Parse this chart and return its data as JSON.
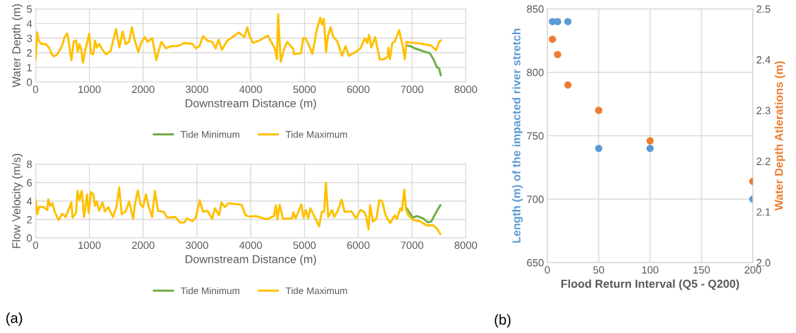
{
  "chart_data": [
    {
      "type": "line",
      "xlabel": "Downstream Distance (m)",
      "ylabel": "Water Depth (m)",
      "xlim": [
        0,
        8000
      ],
      "xticks": [
        0,
        1000,
        2000,
        3000,
        4000,
        5000,
        6000,
        7000,
        8000
      ],
      "ylim": [
        0,
        5
      ],
      "yticks": [
        0,
        1,
        2,
        3,
        4,
        5
      ],
      "grid": true,
      "legend": "bottom",
      "marker": "none",
      "line_style": "solid",
      "series": [
        {
          "name": "Tide Minimum",
          "color": "#70ad47",
          "x": [
            6896,
            6972,
            7057,
            7227,
            7333,
            7397,
            7461,
            7503,
            7533
          ],
          "values": [
            2.5,
            2.45,
            2.3,
            2.08,
            1.97,
            1.57,
            1.02,
            0.94,
            0.47
          ]
        },
        {
          "name": "Tide Maximum",
          "color": "#ffc000",
          "x": [
            0,
            30,
            56,
            107,
            172,
            215,
            258,
            300,
            343,
            408,
            494,
            536,
            588,
            622,
            665,
            708,
            751,
            785,
            815,
            845,
            880,
            931,
            996,
            1030,
            1073,
            1103,
            1137,
            1180,
            1245,
            1309,
            1395,
            1494,
            1558,
            1618,
            1674,
            1738,
            1790,
            1833,
            1910,
            1961,
            2030,
            2082,
            2167,
            2245,
            2288,
            2339,
            2425,
            2511,
            2640,
            2768,
            2918,
            2983,
            3047,
            3112,
            3197,
            3283,
            3348,
            3403,
            3464,
            3562,
            3777,
            3884,
            3936,
            3979,
            4042,
            4170,
            4318,
            4403,
            4446,
            4488,
            4510,
            4531,
            4560,
            4616,
            4679,
            4743,
            4786,
            4807,
            4934,
            4977,
            5019,
            5083,
            5146,
            5231,
            5295,
            5325,
            5359,
            5401,
            5435,
            5486,
            5529,
            5614,
            5699,
            5762,
            5826,
            5953,
            6038,
            6123,
            6166,
            6200,
            6242,
            6314,
            6399,
            6484,
            6548,
            6560,
            6590,
            6633,
            6675,
            6760,
            6824,
            6866,
            6896,
            6972,
            7142,
            7354,
            7448,
            7503,
            7533
          ],
          "values": [
            1.57,
            3.4,
            2.83,
            2.6,
            2.6,
            2.5,
            2.3,
            1.9,
            1.75,
            1.9,
            2.5,
            3.05,
            3.33,
            2.6,
            1.5,
            2.75,
            2.85,
            2.05,
            2.6,
            2.3,
            1.33,
            2.3,
            3.3,
            1.97,
            1.9,
            2.83,
            2.36,
            2.6,
            2.2,
            1.9,
            2.12,
            3.62,
            2.36,
            3.46,
            2.6,
            2.75,
            3.74,
            3.0,
            2.05,
            2.67,
            3.07,
            2.75,
            3.0,
            1.5,
            2.12,
            2.75,
            2.3,
            2.45,
            2.45,
            2.67,
            2.6,
            2.3,
            2.45,
            3.14,
            2.83,
            2.75,
            2.3,
            2.9,
            2.2,
            2.83,
            3.38,
            3.07,
            3.74,
            3.14,
            2.67,
            2.86,
            3.18,
            2.6,
            2.3,
            1.57,
            4.64,
            3.14,
            1.38,
            2.2,
            2.75,
            2.45,
            2.3,
            1.9,
            1.97,
            3.0,
            3.0,
            2.5,
            1.92,
            3.62,
            4.4,
            3.93,
            4.32,
            2.05,
            3.14,
            3.74,
            3.14,
            2.75,
            1.8,
            2.45,
            1.8,
            2.05,
            2.3,
            3.0,
            2.67,
            3.22,
            2.36,
            3.07,
            1.54,
            1.57,
            1.73,
            2.33,
            1.57,
            2.67,
            2.75,
            3.54,
            2.5,
            1.57,
            2.75,
            2.7,
            2.64,
            2.5,
            2.17,
            2.75,
            2.83
          ]
        }
      ]
    },
    {
      "type": "line",
      "xlabel": "Downstream Distance (m)",
      "ylabel": "Flow Velocity (m/s)",
      "xlim": [
        0,
        8000
      ],
      "xticks": [
        0,
        1000,
        2000,
        3000,
        4000,
        5000,
        6000,
        7000,
        8000
      ],
      "ylim": [
        0,
        8
      ],
      "yticks": [
        0,
        2,
        4,
        6,
        8
      ],
      "grid": true,
      "legend": "bottom",
      "marker": "none",
      "line_style": "solid",
      "annotations": [
        "(a)"
      ],
      "series": [
        {
          "name": "Tide Minimum",
          "color": "#70ad47",
          "x": [
            6890,
            7017,
            7093,
            7208,
            7292,
            7356,
            7441,
            7525
          ],
          "values": [
            3.28,
            2.2,
            2.37,
            2.12,
            1.69,
            1.77,
            2.7,
            3.54
          ]
        },
        {
          "name": "Tide Maximum",
          "color": "#ffc000",
          "x": [
            0,
            30,
            64,
            150,
            215,
            236,
            270,
            313,
            356,
            429,
            494,
            558,
            622,
            665,
            687,
            751,
            777,
            815,
            858,
            901,
            957,
            987,
            1030,
            1073,
            1103,
            1137,
            1180,
            1245,
            1288,
            1352,
            1438,
            1502,
            1554,
            1601,
            1674,
            1738,
            1815,
            1845,
            1901,
            1953,
            1996,
            2052,
            2103,
            2167,
            2219,
            2275,
            2382,
            2446,
            2597,
            2682,
            2768,
            2811,
            2918,
            2983,
            3052,
            3112,
            3197,
            3283,
            3335,
            3412,
            3455,
            3519,
            3584,
            3830,
            3906,
            3970,
            4093,
            4305,
            4432,
            4466,
            4496,
            4538,
            4602,
            4771,
            4792,
            4835,
            4941,
            4983,
            5025,
            5068,
            5110,
            5174,
            5271,
            5322,
            5364,
            5398,
            5441,
            5513,
            5555,
            5619,
            5691,
            5746,
            5873,
            5958,
            6042,
            6106,
            6148,
            6191,
            6220,
            6275,
            6339,
            6390,
            6445,
            6508,
            6593,
            6678,
            6720,
            6784,
            6814,
            6856,
            6890,
            6932,
            7017,
            7144,
            7271,
            7398,
            7475,
            7525
          ],
          "values": [
            4.09,
            2.58,
            3.38,
            3.33,
            3.03,
            4.17,
            3.46,
            3.76,
            2.83,
            1.94,
            2.63,
            2.27,
            3.21,
            3.84,
            2.2,
            2.7,
            5.1,
            4.09,
            5.1,
            2.27,
            4.72,
            2.7,
            4.97,
            4.72,
            3.46,
            3.96,
            2.95,
            3.84,
            2.88,
            3.33,
            2.27,
            3.33,
            5.48,
            2.58,
            2.88,
            3.96,
            2.07,
            3.59,
            5.15,
            3.59,
            3.33,
            4.72,
            3.38,
            2.27,
            5.1,
            2.95,
            2.83,
            2.2,
            2.27,
            1.69,
            1.69,
            2.12,
            1.82,
            2.27,
            4.09,
            2.83,
            2.95,
            2.07,
            3.21,
            2.45,
            3.84,
            3.33,
            3.76,
            3.59,
            2.45,
            2.32,
            2.37,
            2.02,
            2.37,
            3.54,
            2.02,
            3.59,
            2.07,
            2.12,
            2.78,
            2.12,
            3.64,
            2.2,
            3.03,
            2.12,
            3.21,
            2.45,
            1.26,
            2.83,
            2.83,
            5.98,
            2.27,
            3.03,
            2.27,
            2.95,
            4.14,
            2.83,
            2.88,
            2.12,
            3.03,
            2.83,
            2.32,
            0.93,
            3.54,
            1.77,
            2.12,
            4.09,
            3.96,
            2.45,
            1.62,
            2.45,
            2.07,
            3.21,
            2.95,
            5.23,
            3.03,
            2.45,
            1.94,
            1.82,
            1.36,
            1.36,
            0.93,
            0.43
          ]
        }
      ]
    },
    {
      "type": "scatter",
      "xlabel": "Flood Return Interval (Q5 - Q200)",
      "ylabel": "Length (m) of the impacted river stretch",
      "y2label": "Water Depth Atlerations (m)",
      "xlim": [
        0,
        200
      ],
      "xticks": [
        0,
        50,
        100,
        150,
        200
      ],
      "ylim": [
        650,
        850
      ],
      "yticks": [
        650,
        700,
        750,
        800,
        850
      ],
      "y2lim": [
        2.0,
        2.5
      ],
      "y2ticks": [
        {
          "value": 2.0,
          "label": "2.0"
        },
        {
          "value": 2.1,
          "label": "2.1"
        },
        {
          "value": 2.2,
          "label": "2.2"
        },
        {
          "value": 2.3,
          "label": "2.3"
        },
        {
          "value": 2.4,
          "label": "2.4"
        },
        {
          "value": 2.5,
          "label": "2.5"
        }
      ],
      "grid": true,
      "marker": "circle",
      "annotations": [
        "(b)"
      ],
      "series": [
        {
          "color": "#5b9bd5",
          "x": [
            5,
            10,
            20,
            50,
            100,
            200
          ],
          "values": [
            840,
            840,
            840,
            740,
            740,
            700
          ]
        },
        {
          "color": "#ed7d31",
          "axis": "y2",
          "x": [
            5,
            10,
            20,
            50,
            100,
            200
          ],
          "values": [
            2.44,
            2.41,
            2.35,
            2.3,
            2.24,
            2.16
          ]
        }
      ]
    }
  ]
}
